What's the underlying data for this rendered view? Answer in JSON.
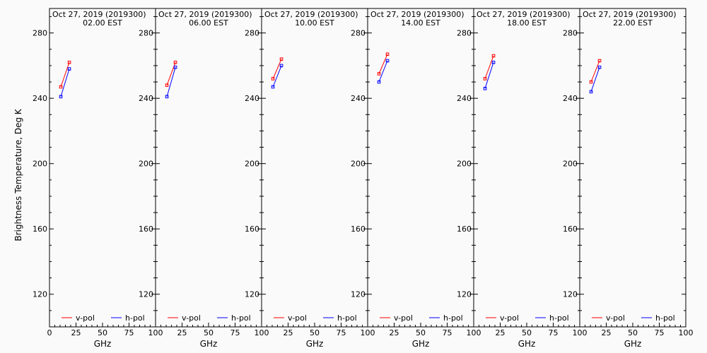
{
  "chart_data": {
    "type": "line",
    "ylabel": "Brightness Temperature, Deg K",
    "xlabel": "GHz",
    "xlim": [
      0,
      100
    ],
    "ylim": [
      100,
      295
    ],
    "xticks": [
      0,
      25,
      50,
      75,
      100
    ],
    "xtick_labels": [
      "0",
      "25",
      "50",
      "75",
      "100"
    ],
    "yticks": [
      120,
      160,
      200,
      240,
      280
    ],
    "ytick_labels": [
      "120",
      "160",
      "200",
      "240",
      "280"
    ],
    "grid": false,
    "legend_placement": "bottom",
    "legend": [
      {
        "label": "v-pol",
        "color": "#ff0000"
      },
      {
        "label": "h-pol",
        "color": "#0000ff"
      }
    ],
    "panels": [
      {
        "date": "Oct 27, 2019 (2019300)",
        "time": "02.00 EST",
        "series": [
          {
            "name": "v-pol",
            "color": "#ff0000",
            "x": [
              10.7,
              18.7
            ],
            "y": [
              247,
              262
            ]
          },
          {
            "name": "h-pol",
            "color": "#0000ff",
            "x": [
              10.7,
              18.7
            ],
            "y": [
              241,
              258
            ]
          }
        ]
      },
      {
        "date": "Oct 27, 2019 (2019300)",
        "time": "06.00 EST",
        "series": [
          {
            "name": "v-pol",
            "color": "#ff0000",
            "x": [
              10.7,
              18.7
            ],
            "y": [
              248,
              262
            ]
          },
          {
            "name": "h-pol",
            "color": "#0000ff",
            "x": [
              10.7,
              18.7
            ],
            "y": [
              241,
              259
            ]
          }
        ]
      },
      {
        "date": "Oct 27, 2019 (2019300)",
        "time": "10.00 EST",
        "series": [
          {
            "name": "v-pol",
            "color": "#ff0000",
            "x": [
              10.7,
              18.7
            ],
            "y": [
              252,
              264
            ]
          },
          {
            "name": "h-pol",
            "color": "#0000ff",
            "x": [
              10.7,
              18.7
            ],
            "y": [
              247,
              260
            ]
          }
        ]
      },
      {
        "date": "Oct 27, 2019 (2019300)",
        "time": "14.00 EST",
        "series": [
          {
            "name": "v-pol",
            "color": "#ff0000",
            "x": [
              10.7,
              18.7
            ],
            "y": [
              255,
              267
            ]
          },
          {
            "name": "h-pol",
            "color": "#0000ff",
            "x": [
              10.7,
              18.7
            ],
            "y": [
              250,
              263
            ]
          }
        ]
      },
      {
        "date": "Oct 27, 2019 (2019300)",
        "time": "18.00 EST",
        "series": [
          {
            "name": "v-pol",
            "color": "#ff0000",
            "x": [
              10.7,
              18.7
            ],
            "y": [
              252,
              266
            ]
          },
          {
            "name": "h-pol",
            "color": "#0000ff",
            "x": [
              10.7,
              18.7
            ],
            "y": [
              246,
              262
            ]
          }
        ]
      },
      {
        "date": "Oct 27, 2019 (2019300)",
        "time": "22.00 EST",
        "series": [
          {
            "name": "v-pol",
            "color": "#ff0000",
            "x": [
              10.7,
              18.7
            ],
            "y": [
              250,
              263
            ]
          },
          {
            "name": "h-pol",
            "color": "#0000ff",
            "x": [
              10.7,
              18.7
            ],
            "y": [
              244,
              259
            ]
          }
        ]
      }
    ]
  }
}
